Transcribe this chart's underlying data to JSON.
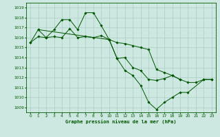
{
  "title": "Graphe pression niveau de la mer (hPa)",
  "bg_color": "#cce8e0",
  "grid_color": "#aaccc4",
  "line_color": "#005500",
  "marker_color": "#005500",
  "ylim": [
    1008.5,
    1019.5
  ],
  "xlim": [
    -0.5,
    23.5
  ],
  "yticks": [
    1009,
    1010,
    1011,
    1012,
    1013,
    1014,
    1015,
    1016,
    1017,
    1018,
    1019
  ],
  "xticks": [
    0,
    1,
    2,
    3,
    4,
    5,
    6,
    7,
    8,
    9,
    10,
    11,
    12,
    13,
    14,
    15,
    16,
    17,
    18,
    19,
    20,
    21,
    22,
    23
  ],
  "series": [
    {
      "points": [
        [
          0,
          1015.5
        ],
        [
          1,
          1016.1
        ],
        [
          2,
          1016.0
        ],
        [
          3,
          1016.1
        ],
        [
          4,
          1016.0
        ],
        [
          5,
          1016.9
        ],
        [
          6,
          1016.0
        ],
        [
          7,
          1016.1
        ],
        [
          8,
          1016.0
        ],
        [
          9,
          1016.2
        ],
        [
          10,
          1015.8
        ],
        [
          11,
          1015.5
        ],
        [
          12,
          1015.4
        ],
        [
          13,
          1015.2
        ],
        [
          14,
          1015.0
        ],
        [
          15,
          1014.8
        ],
        [
          16,
          1012.8
        ],
        [
          17,
          1012.5
        ],
        [
          18,
          1012.2
        ],
        [
          19,
          1011.8
        ],
        [
          20,
          1011.5
        ],
        [
          21,
          1011.5
        ],
        [
          22,
          1011.8
        ],
        [
          23,
          1011.8
        ]
      ]
    },
    {
      "points": [
        [
          0,
          1015.5
        ],
        [
          1,
          1016.8
        ],
        [
          2,
          1016.0
        ],
        [
          3,
          1016.8
        ],
        [
          4,
          1017.8
        ],
        [
          5,
          1017.8
        ],
        [
          6,
          1016.8
        ],
        [
          7,
          1018.5
        ],
        [
          8,
          1018.5
        ],
        [
          9,
          1017.2
        ],
        [
          10,
          1015.8
        ],
        [
          11,
          1013.9
        ],
        [
          12,
          1014.0
        ],
        [
          13,
          1013.0
        ],
        [
          14,
          1012.7
        ],
        [
          15,
          1011.8
        ],
        [
          16,
          1011.7
        ],
        [
          17,
          1011.9
        ],
        [
          18,
          1012.2
        ],
        [
          19,
          1011.8
        ]
      ]
    },
    {
      "points": [
        [
          1,
          1016.8
        ],
        [
          10,
          1015.8
        ],
        [
          11,
          1013.9
        ],
        [
          12,
          1012.7
        ],
        [
          13,
          1012.2
        ],
        [
          14,
          1011.2
        ],
        [
          15,
          1009.5
        ],
        [
          16,
          1008.8
        ],
        [
          17,
          1009.5
        ],
        [
          18,
          1010.0
        ],
        [
          19,
          1010.5
        ],
        [
          20,
          1010.5
        ],
        [
          22,
          1011.8
        ],
        [
          23,
          1011.8
        ]
      ]
    }
  ]
}
